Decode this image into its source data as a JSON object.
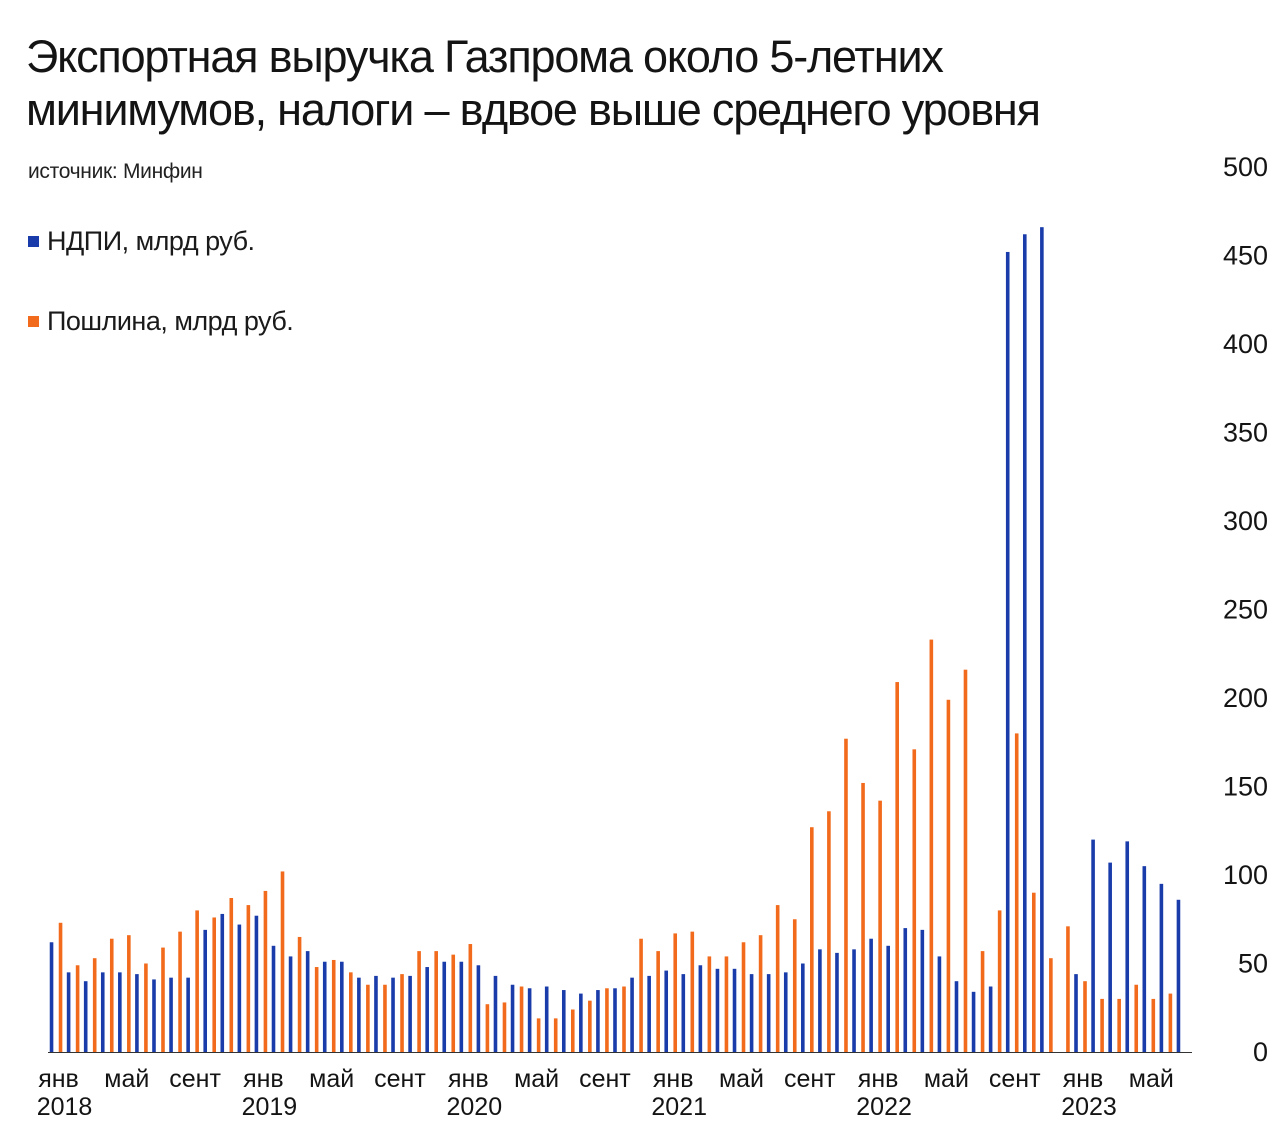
{
  "title_line1": "Экспортная выручка Газпрома около 5-летних",
  "title_line2": "минимумов, налоги – вдвое выше среднего уровня",
  "source": "источник: Минфин",
  "colors": {
    "ndpi": "#1a3caa",
    "duty": "#f26a1b",
    "axis": "#333333",
    "text": "#141414"
  },
  "chart_data": {
    "type": "bar",
    "title": "Экспортная выручка Газпрома около 5-летних минимумов, налоги – вдвое выше среднего уровня",
    "ylim": [
      0,
      500
    ],
    "yticks": [
      0,
      50,
      100,
      150,
      200,
      250,
      300,
      350,
      400,
      450,
      500
    ],
    "yaxis_position": "right",
    "grid": false,
    "legend_position": "top-left",
    "month_labels": [
      {
        "index": 0,
        "label": "янв"
      },
      {
        "index": 4,
        "label": "май"
      },
      {
        "index": 8,
        "label": "сент"
      },
      {
        "index": 12,
        "label": "янв"
      },
      {
        "index": 16,
        "label": "май"
      },
      {
        "index": 20,
        "label": "сент"
      },
      {
        "index": 24,
        "label": "янв"
      },
      {
        "index": 28,
        "label": "май"
      },
      {
        "index": 32,
        "label": "сент"
      },
      {
        "index": 36,
        "label": "янв"
      },
      {
        "index": 40,
        "label": "май"
      },
      {
        "index": 44,
        "label": "сент"
      },
      {
        "index": 48,
        "label": "янв"
      },
      {
        "index": 52,
        "label": "май"
      },
      {
        "index": 56,
        "label": "сент"
      },
      {
        "index": 60,
        "label": "янв"
      },
      {
        "index": 64,
        "label": "май"
      }
    ],
    "year_labels": [
      {
        "index": 0,
        "label": "2018"
      },
      {
        "index": 12,
        "label": "2019"
      },
      {
        "index": 24,
        "label": "2020"
      },
      {
        "index": 36,
        "label": "2021"
      },
      {
        "index": 48,
        "label": "2022"
      },
      {
        "index": 60,
        "label": "2023"
      }
    ],
    "series": [
      {
        "name": "НДПИ, млрд руб.",
        "values": [
          62,
          45,
          40,
          45,
          45,
          44,
          41,
          42,
          42,
          69,
          78,
          72,
          77,
          60,
          54,
          57,
          51,
          51,
          42,
          43,
          42,
          43,
          48,
          51,
          51,
          49,
          43,
          38,
          36,
          37,
          35,
          33,
          35,
          36,
          42,
          43,
          46,
          44,
          49,
          47,
          47,
          44,
          44,
          45,
          50,
          58,
          56,
          58,
          64,
          60,
          70,
          69,
          54,
          40,
          34,
          37,
          452,
          462,
          466,
          0,
          44,
          120,
          107,
          119,
          105,
          95,
          86
        ]
      },
      {
        "name": "Пошлина, млрд руб.",
        "values": [
          73,
          49,
          53,
          64,
          66,
          50,
          59,
          68,
          80,
          76,
          87,
          83,
          91,
          102,
          65,
          48,
          52,
          45,
          38,
          38,
          44,
          57,
          57,
          55,
          61,
          27,
          28,
          37,
          19,
          19,
          24,
          29,
          36,
          37,
          64,
          57,
          67,
          68,
          54,
          54,
          62,
          66,
          83,
          75,
          127,
          136,
          177,
          152,
          142,
          209,
          171,
          233,
          199,
          216,
          57,
          80,
          180,
          90,
          53,
          71,
          40,
          30,
          30,
          38,
          30,
          33
        ]
      }
    ]
  }
}
